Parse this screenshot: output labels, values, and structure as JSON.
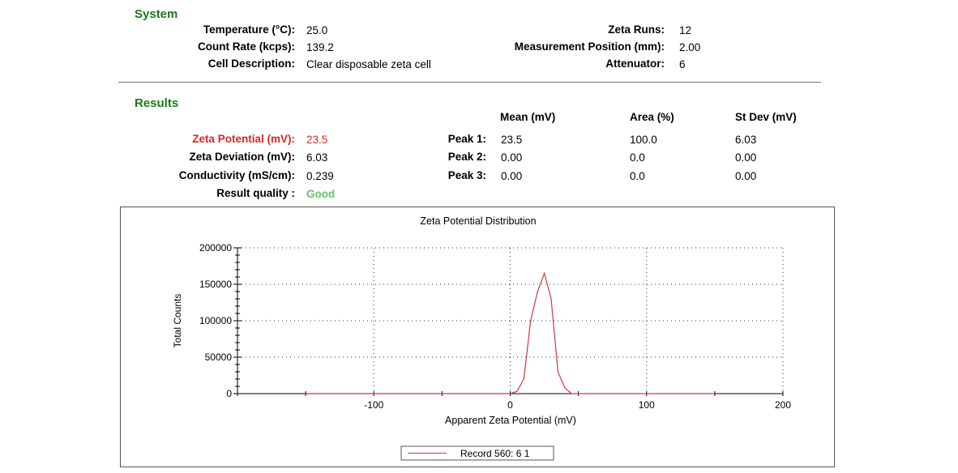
{
  "system": {
    "title": "System",
    "left_labels": [
      "Temperature (°C):",
      "Count Rate (kcps):",
      "Cell Description:"
    ],
    "left_values": [
      "25.0",
      "139.2",
      "Clear disposable zeta cell"
    ],
    "right_labels": [
      "Zeta Runs:",
      "Measurement Position (mm):",
      "Attenuator:"
    ],
    "right_values": [
      "12",
      "2.00",
      "6"
    ]
  },
  "results": {
    "title": "Results",
    "left_labels": [
      "Zeta Potential (mV):",
      "Zeta Deviation (mV):",
      "Conductivity (mS/cm):",
      "Result quality :"
    ],
    "left_values": [
      "23.5",
      "6.03",
      "0.239",
      "Good"
    ],
    "peak_headers": [
      "Mean (mV)",
      "Area (%)",
      "St Dev (mV)"
    ],
    "peaks": [
      {
        "label": "Peak 1:",
        "mean": "23.5",
        "area": "100.0",
        "stdev": "6.03"
      },
      {
        "label": "Peak 2:",
        "mean": "0.00",
        "area": "0.0",
        "stdev": "0.00"
      },
      {
        "label": "Peak 3:",
        "mean": "0.00",
        "area": "0.0",
        "stdev": "0.00"
      }
    ]
  },
  "colors": {
    "section_title": "#1a7a1a",
    "highlight": "#d62828",
    "good": "#6cc06c",
    "series": "#c83c3c"
  },
  "chart_data": {
    "type": "line",
    "title": "Zeta Potential Distribution",
    "xlabel": "Apparent Zeta Potential (mV)",
    "ylabel": "Total Counts",
    "xlim": [
      -200,
      200
    ],
    "ylim": [
      0,
      200000
    ],
    "xticks": [
      "-100",
      "0",
      "100",
      "200"
    ],
    "xtick_values": [
      -100,
      0,
      100,
      200
    ],
    "yticks": [
      "0",
      "50000",
      "100000",
      "150000",
      "200000"
    ],
    "ytick_values": [
      0,
      50000,
      100000,
      150000,
      200000
    ],
    "grid": true,
    "legend_position": "bottom-center",
    "series": [
      {
        "name": "Record 560: 6 1",
        "x": [
          -150,
          0,
          5,
          10,
          15,
          20,
          25,
          30,
          35,
          40,
          45,
          150
        ],
        "y": [
          0,
          0,
          3000,
          20000,
          100000,
          140000,
          165000,
          130000,
          30000,
          8000,
          0,
          0
        ]
      }
    ]
  }
}
